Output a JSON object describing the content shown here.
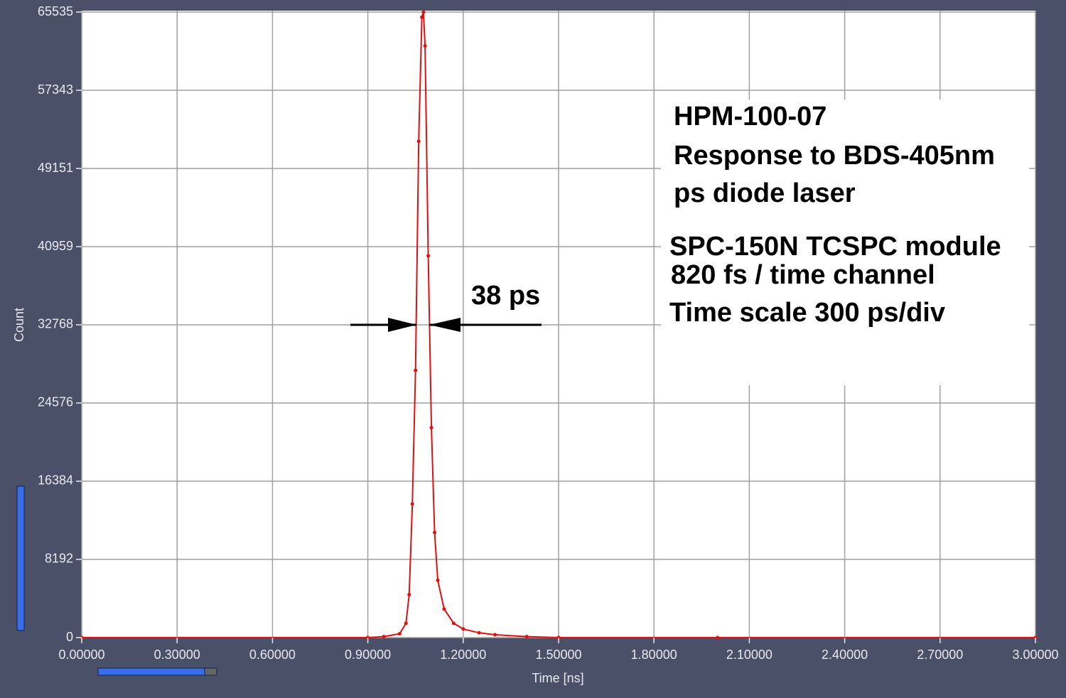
{
  "chart_data": {
    "type": "line",
    "xlabel": "Time [ns]",
    "ylabel": "Count",
    "annotations": [
      "HPM-100-07",
      "Response to BDS-405nm",
      "ps diode laser",
      "SPC-150N TCSPC module",
      "820 fs / time channel",
      "Time scale 300 ps/div",
      "38 ps"
    ],
    "x": [
      0,
      0.9,
      0.95,
      1.0,
      1.02,
      1.03,
      1.04,
      1.05,
      1.06,
      1.07,
      1.075,
      1.08,
      1.09,
      1.1,
      1.11,
      1.12,
      1.14,
      1.17,
      1.2,
      1.25,
      1.3,
      1.4,
      1.5,
      2.0,
      3.0
    ],
    "series": [
      {
        "color": "#e01010",
        "values": [
          0,
          0,
          100,
          400,
          1500,
          4500,
          14000,
          28000,
          52000,
          65000,
          65535,
          62000,
          40000,
          22000,
          11000,
          6000,
          3000,
          1500,
          900,
          500,
          300,
          100,
          0,
          0,
          0
        ]
      }
    ],
    "xlim": [
      0,
      3
    ],
    "xticks": [
      {
        "value": 0,
        "label": "0.00000"
      },
      {
        "value": 0.3,
        "label": "0.30000"
      },
      {
        "value": 0.6,
        "label": "0.60000"
      },
      {
        "value": 0.9,
        "label": "0.90000"
      },
      {
        "value": 1.2,
        "label": "1.20000"
      },
      {
        "value": 1.5,
        "label": "1.50000"
      },
      {
        "value": 1.8,
        "label": "1.80000"
      },
      {
        "value": 2.1,
        "label": "2.10000"
      },
      {
        "value": 2.4,
        "label": "2.40000"
      },
      {
        "value": 2.7,
        "label": "2.70000"
      },
      {
        "value": 3.0,
        "label": "3.00000"
      }
    ],
    "ylim": [
      0,
      65535
    ],
    "yticks": [
      0,
      8192,
      16384,
      24576,
      32768,
      40959,
      49151,
      57343,
      65535
    ],
    "grid": true
  }
}
